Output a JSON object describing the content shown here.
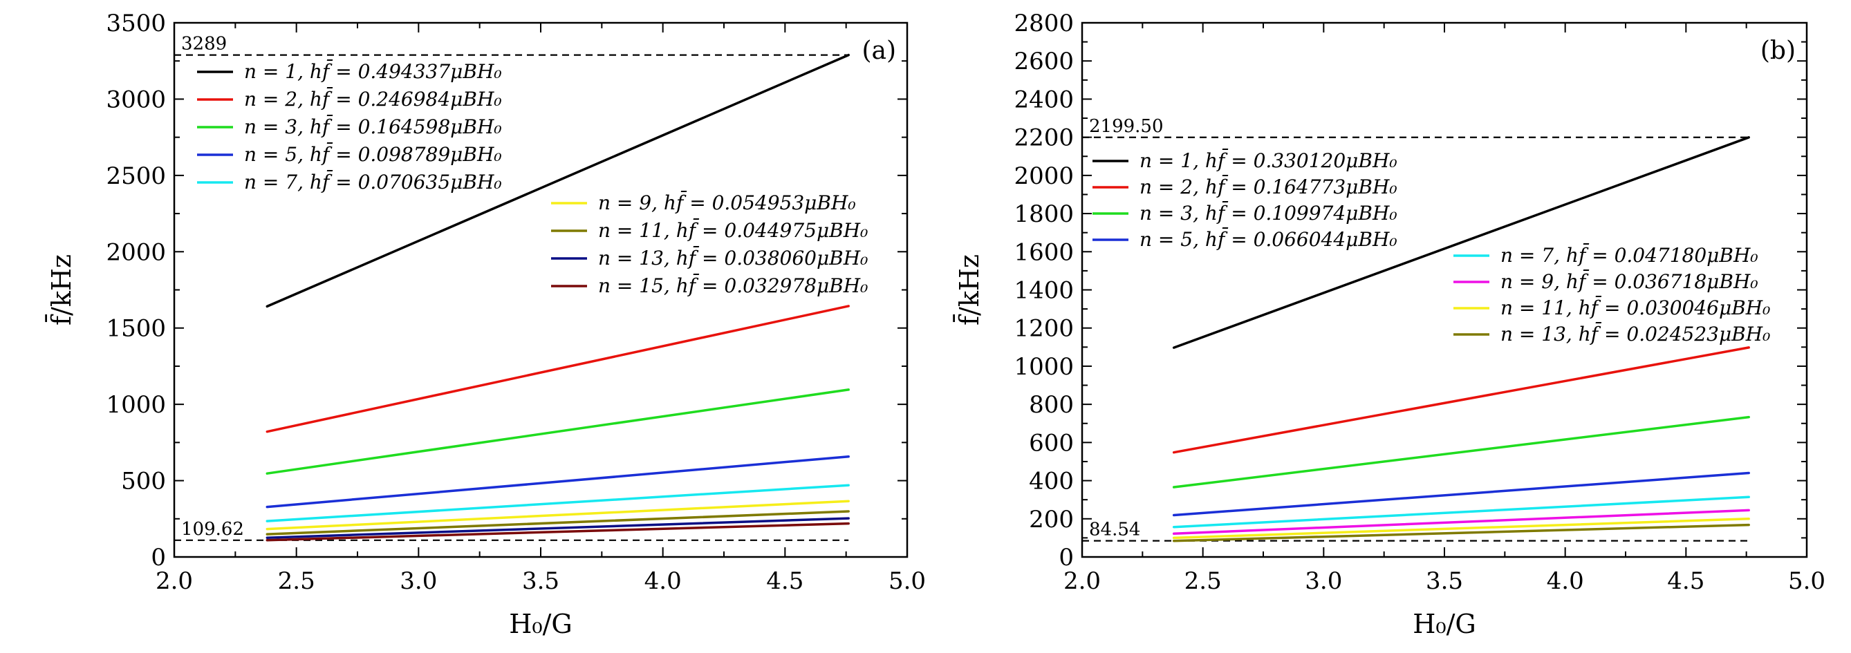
{
  "chart_data": [
    {
      "type": "line",
      "panel_label": "(a)",
      "xlabel": "H₀/G",
      "ylabel": "f̄/kHz",
      "xlim": [
        2.0,
        5.0
      ],
      "ylim": [
        0,
        3500
      ],
      "x_ticks": [
        2.0,
        2.5,
        3.0,
        3.5,
        4.0,
        4.5,
        5.0
      ],
      "x_tick_labels": [
        "2.0",
        "2.5",
        "3.0",
        "3.5",
        "4.0",
        "4.5",
        "5.0"
      ],
      "y_ticks": [
        0,
        500,
        1000,
        1500,
        2000,
        2500,
        3000,
        3500
      ],
      "y_tick_labels": [
        "0",
        "500",
        "1000",
        "1500",
        "2000",
        "2500",
        "3000",
        "3500"
      ],
      "reference_lines": [
        {
          "y": 3289,
          "label": "3289"
        },
        {
          "y": 109.62,
          "label": "109.62"
        }
      ],
      "x": [
        2.38,
        4.76
      ],
      "series": [
        {
          "name": "n = 1, hf̄ = 0.494337μBH₀",
          "color": "#000000",
          "values": [
            1642,
            3289
          ],
          "legend_group": 1
        },
        {
          "name": "n = 2, hf̄ = 0.246984μBH₀",
          "color": "#e8120c",
          "values": [
            821,
            1644
          ],
          "legend_group": 1
        },
        {
          "name": "n = 3, hf̄ = 0.164598μBH₀",
          "color": "#1fdc1f",
          "values": [
            547,
            1096
          ],
          "legend_group": 1
        },
        {
          "name": "n = 5, hf̄ = 0.098789μBH₀",
          "color": "#1a2fd6",
          "values": [
            328,
            658
          ],
          "legend_group": 1
        },
        {
          "name": "n = 7, hf̄ = 0.070635μBH₀",
          "color": "#16e8f0",
          "values": [
            235,
            470
          ],
          "legend_group": 1
        },
        {
          "name": "n = 9, hf̄ = 0.054953μBH₀",
          "color": "#f6ee1a",
          "values": [
            183,
            366
          ],
          "legend_group": 2
        },
        {
          "name": "n = 11, hf̄ = 0.044975μBH₀",
          "color": "#7f7a00",
          "values": [
            149,
            299
          ],
          "legend_group": 2
        },
        {
          "name": "n = 13, hf̄ = 0.038060μBH₀",
          "color": "#0a0f86",
          "values": [
            126,
            253
          ],
          "legend_group": 2
        },
        {
          "name": "n = 15, hf̄ = 0.032978μBH₀",
          "color": "#7a0a0a",
          "values": [
            110,
            219
          ],
          "legend_group": 2
        }
      ]
    },
    {
      "type": "line",
      "panel_label": "(b)",
      "xlabel": "H₀/G",
      "ylabel": "f̄/kHz",
      "xlim": [
        2.0,
        5.0
      ],
      "ylim": [
        0,
        2800
      ],
      "x_ticks": [
        2.0,
        2.5,
        3.0,
        3.5,
        4.0,
        4.5,
        5.0
      ],
      "x_tick_labels": [
        "2.0",
        "2.5",
        "3.0",
        "3.5",
        "4.0",
        "4.5",
        "5.0"
      ],
      "y_ticks": [
        0,
        200,
        400,
        600,
        800,
        1000,
        1200,
        1400,
        1600,
        1800,
        2000,
        2200,
        2400,
        2600,
        2800
      ],
      "y_tick_labels": [
        "0",
        "200",
        "400",
        "600",
        "800",
        "1000",
        "1200",
        "1400",
        "1600",
        "1800",
        "2000",
        "2200",
        "2400",
        "2600",
        "2800"
      ],
      "reference_lines": [
        {
          "y": 2199.5,
          "label": "2199.50"
        },
        {
          "y": 84.54,
          "label": "84.54"
        }
      ],
      "x": [
        2.38,
        4.76
      ],
      "series": [
        {
          "name": "n = 1, hf̄ = 0.330120μBH₀",
          "color": "#000000",
          "values": [
            1097,
            2199.5
          ],
          "legend_group": 1
        },
        {
          "name": "n = 2, hf̄ = 0.164773μBH₀",
          "color": "#e8120c",
          "values": [
            548,
            1098
          ],
          "legend_group": 1
        },
        {
          "name": "n = 3, hf̄ = 0.109974μBH₀",
          "color": "#1fdc1f",
          "values": [
            366,
            733
          ],
          "legend_group": 1
        },
        {
          "name": "n = 5, hf̄ = 0.066044μBH₀",
          "color": "#1a2fd6",
          "values": [
            219,
            440
          ],
          "legend_group": 1
        },
        {
          "name": "n = 7, hf̄ = 0.047180μBH₀",
          "color": "#16e8f0",
          "values": [
            157,
            314
          ],
          "legend_group": 2
        },
        {
          "name": "n = 9, hf̄ = 0.036718μBH₀",
          "color": "#ee10e6",
          "values": [
            122,
            245
          ],
          "legend_group": 2
        },
        {
          "name": "n = 11, hf̄ = 0.030046μBH₀",
          "color": "#f6ee1a",
          "values": [
            100,
            200
          ],
          "legend_group": 2
        },
        {
          "name": "n = 13, hf̄ = 0.024523μBH₀",
          "color": "#7f7a00",
          "values": [
            84.54,
            168
          ],
          "legend_group": 2
        }
      ]
    }
  ]
}
